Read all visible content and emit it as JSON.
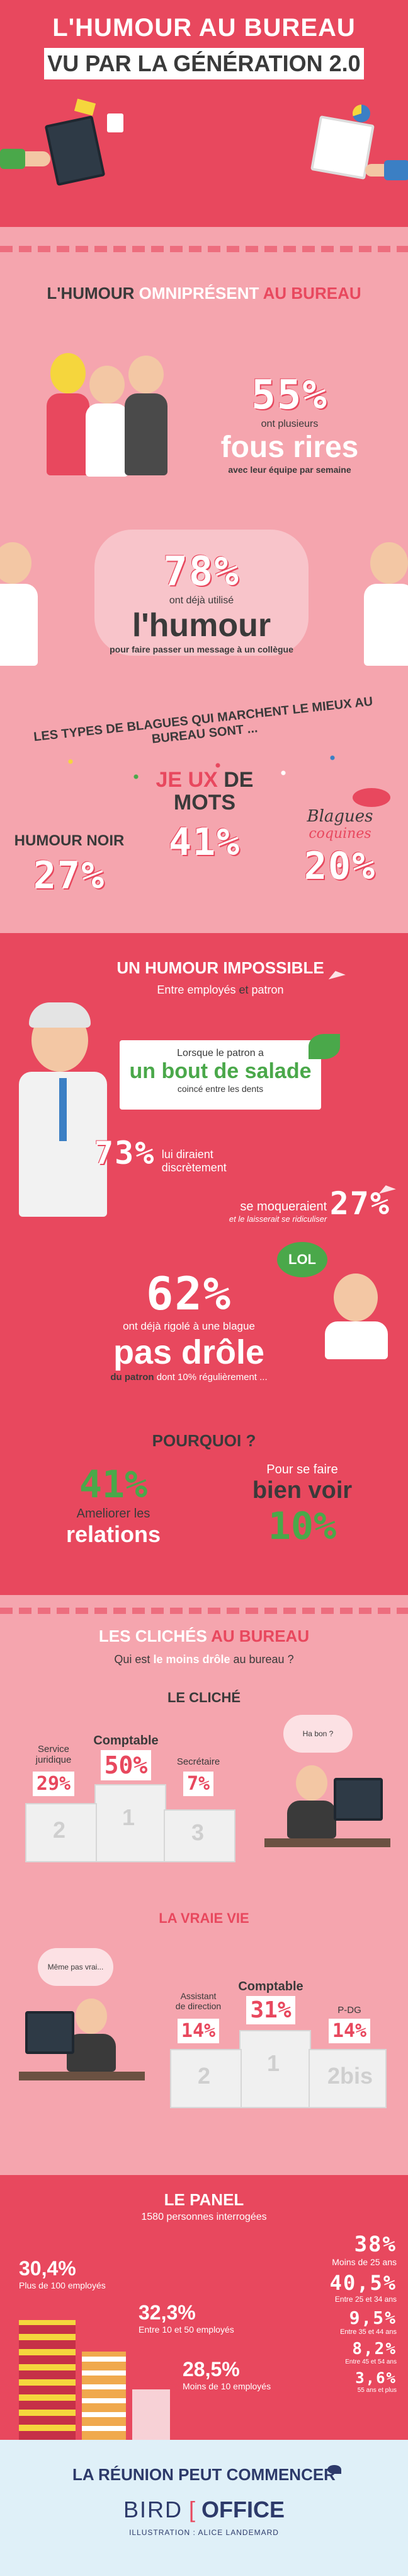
{
  "header": {
    "title_line1": "L'HUMOUR AU BUREAU",
    "title_line2": "VU PAR LA GÉNÉRATION 2.0"
  },
  "section1": {
    "heading_a": "L'HUMOUR",
    "heading_b": "OMNIPRÉSENT",
    "heading_c": "AU BUREAU",
    "stat1_value": "55%",
    "stat1_pre": "ont plusieurs",
    "stat1_big": "fous rires",
    "stat1_post": "avec leur équipe par semaine",
    "stat2_value": "78%",
    "stat2_pre": "ont déjà utilisé",
    "stat2_big": "l'humour",
    "stat2_post": "pour faire passer un message à un collègue",
    "jokes_title": "LES TYPES DE BLAGUES QUI MARCHENT LE MIEUX AU BUREAU SONT ...",
    "joke1_label": "HUMOUR NOIR",
    "joke1_value": "27%",
    "joke2_label_a": "JE",
    "joke2_label_b": "UX",
    "joke2_label_c": "DE",
    "joke2_label_d": "MOTS",
    "joke2_value": "41%",
    "joke3_label_a": "Blagues",
    "joke3_label_b": "coquines",
    "joke3_value": "20%"
  },
  "section2": {
    "heading": "UN HUMOUR IMPOSSIBLE",
    "sub_a": "Entre employés",
    "sub_b": "et",
    "sub_c": "patron",
    "sign_pre": "Lorsque le patron a",
    "sign_big": "un bout de salade",
    "sign_post": "coincé entre les dents",
    "stat1_value": "73%",
    "stat1_text_a": "lui diraient",
    "stat1_text_b": "discrètement",
    "stat2_text_a": "se moqueraient",
    "stat2_text_b": "et le laisserait se ridiculiser",
    "stat2_value": "27%",
    "lol": "LOL",
    "stat3_value": "62%",
    "stat3_pre": "ont déjà rigolé à une blague",
    "stat3_big": "pas drôle",
    "stat3_post_a": "du patron",
    "stat3_post_b": "dont 10% régulièrement ...",
    "why": "POURQUOI ?",
    "reason1_value": "41%",
    "reason1_text_a": "Ameliorer les",
    "reason1_text_b": "relations",
    "reason2_text_a": "Pour se faire",
    "reason2_text_b": "bien voir",
    "reason2_value": "10%"
  },
  "section3": {
    "heading_a": "LES CLICHÉS",
    "heading_b": "AU BUREAU",
    "question_a": "Qui est",
    "question_b": "le moins drôle",
    "question_c": "au bureau ?",
    "cliche_title": "LE CLICHÉ",
    "bubble1": "Ha bon ?",
    "c_first_label": "Comptable",
    "c_first_value": "50%",
    "c_second_label_a": "Service",
    "c_second_label_b": "juridique",
    "c_second_value": "29%",
    "c_third_label": "Secrétaire",
    "c_third_value": "7%",
    "podium_1": "1",
    "podium_2": "2",
    "podium_3": "3",
    "reality_title": "LA VRAIE VIE",
    "bubble2": "Même pas vrai...",
    "r_first_label": "Comptable",
    "r_first_value": "31%",
    "r_second_label_a": "Assistant",
    "r_second_label_b": "de direction",
    "r_second_value": "14%",
    "r_third_label": "P-DG",
    "r_third_value": "14%",
    "podium_2bis": "2bis"
  },
  "section4": {
    "heading": "LE PANEL",
    "sub": "1580 personnes interrogées",
    "size1_value": "30,4%",
    "size1_label": "Plus de 100 employés",
    "size2_value": "32,3%",
    "size2_label": "Entre 10 et 50 employés",
    "size3_value": "28,5%",
    "size3_label": "Moins de 10 employés",
    "age1_value": "38%",
    "age1_label": "Moins de 25 ans",
    "age2_value": "40,5%",
    "age2_label": "Entre 25 et 34 ans",
    "age3_value": "9,5%",
    "age3_label": "Entre 35 et 44 ans",
    "age4_value": "8,2%",
    "age4_label": "Entre 45 et 54 ans",
    "age5_value": "3,6%",
    "age5_label": "55 ans et plus"
  },
  "footer": {
    "title": "LA RÉUNION PEUT COMMENCER",
    "logo_a": "BIRD",
    "logo_b": "OFFICE",
    "credit": "ILLUSTRATION : ALICE LANDEMARD"
  },
  "colors": {
    "red": "#e8485e",
    "pink": "#f5a5ae",
    "light_pink": "#f7b8bf",
    "green": "#4aa84a",
    "dark": "#3a3a3a",
    "footer_bg": "#dff0f8",
    "footer_text": "#2d3a6a"
  }
}
